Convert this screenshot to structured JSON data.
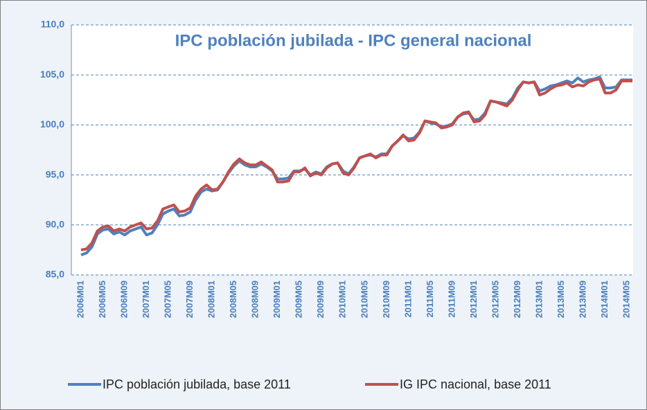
{
  "chart_data": {
    "type": "line",
    "title": "IPC población jubilada - IPC general nacional",
    "categories": [
      "2006M01",
      null,
      null,
      null,
      "2006M05",
      null,
      null,
      null,
      "2006M09",
      null,
      null,
      null,
      "2007M01",
      null,
      null,
      null,
      "2007M05",
      null,
      null,
      null,
      "2007M09",
      null,
      null,
      null,
      "2008M01",
      null,
      null,
      null,
      "2008M05",
      null,
      null,
      null,
      "2008M09",
      null,
      null,
      null,
      "2009M01",
      null,
      null,
      null,
      "2009M05",
      null,
      null,
      null,
      "2009M09",
      null,
      null,
      null,
      "2010M01",
      null,
      null,
      null,
      "2010M05",
      null,
      null,
      null,
      "2010M09",
      null,
      null,
      null,
      "2011M01",
      null,
      null,
      null,
      "2011M05",
      null,
      null,
      null,
      "2011M09",
      null,
      null,
      null,
      "2012M01",
      null,
      null,
      null,
      "2012M05",
      null,
      null,
      null,
      "2012M09",
      null,
      null,
      null,
      "2013M01",
      null,
      null,
      null,
      "2013M05",
      null,
      null,
      null,
      "2013M09",
      null,
      null,
      null,
      "2014M01",
      null,
      null,
      null,
      "2014M05",
      null
    ],
    "series": [
      {
        "name": "IPC población jubilada, base 2011",
        "color": "#4f81bd",
        "values": [
          87.0,
          87.2,
          87.8,
          89.1,
          89.5,
          89.6,
          89.1,
          89.3,
          89.0,
          89.4,
          89.6,
          89.8,
          89.0,
          89.2,
          90.0,
          91.1,
          91.4,
          91.6,
          90.9,
          91.0,
          91.3,
          92.5,
          93.3,
          93.6,
          93.4,
          93.5,
          94.3,
          95.2,
          95.9,
          96.4,
          96.0,
          95.8,
          95.8,
          96.1,
          95.8,
          95.4,
          94.6,
          94.6,
          94.7,
          95.4,
          95.4,
          95.6,
          95.0,
          95.3,
          95.1,
          95.8,
          96.1,
          96.2,
          95.4,
          95.1,
          95.8,
          96.7,
          96.9,
          97.0,
          96.8,
          97.1,
          97.1,
          97.9,
          98.4,
          98.9,
          98.6,
          98.7,
          99.3,
          100.4,
          100.2,
          100.1,
          99.8,
          99.9,
          100.1,
          100.8,
          101.1,
          101.2,
          100.5,
          100.6,
          101.2,
          102.4,
          102.3,
          102.2,
          102.1,
          102.7,
          103.7,
          104.3,
          104.2,
          104.3,
          103.4,
          103.6,
          103.9,
          104.0,
          104.2,
          104.4,
          104.2,
          104.7,
          104.3,
          104.5,
          104.6,
          104.8,
          103.7,
          103.7,
          103.8,
          104.5,
          104.5,
          104.5
        ]
      },
      {
        "name": "IG IPC nacional, base 2011",
        "color": "#c0504d",
        "values": [
          87.5,
          87.6,
          88.2,
          89.4,
          89.8,
          89.9,
          89.4,
          89.6,
          89.4,
          89.8,
          90.0,
          90.2,
          89.6,
          89.7,
          90.4,
          91.6,
          91.8,
          92.0,
          91.3,
          91.4,
          91.7,
          92.9,
          93.6,
          94.0,
          93.5,
          93.6,
          94.3,
          95.3,
          96.1,
          96.6,
          96.2,
          96.0,
          96.0,
          96.3,
          95.9,
          95.5,
          94.3,
          94.3,
          94.4,
          95.3,
          95.3,
          95.7,
          94.9,
          95.2,
          95.0,
          95.7,
          96.1,
          96.2,
          95.2,
          95.0,
          95.7,
          96.7,
          96.9,
          97.1,
          96.7,
          97.0,
          97.0,
          97.9,
          98.4,
          99.0,
          98.4,
          98.5,
          99.2,
          100.4,
          100.3,
          100.2,
          99.7,
          99.8,
          100.0,
          100.8,
          101.2,
          101.3,
          100.3,
          100.4,
          101.0,
          102.4,
          102.3,
          102.1,
          101.9,
          102.5,
          103.5,
          104.3,
          104.2,
          104.3,
          103.0,
          103.2,
          103.6,
          103.9,
          104.0,
          104.2,
          103.8,
          104.0,
          103.9,
          104.3,
          104.5,
          104.6,
          103.2,
          103.2,
          103.5,
          104.4,
          104.4,
          104.4
        ]
      }
    ],
    "ylim": [
      85,
      110
    ],
    "yticks": [
      {
        "value": 85,
        "label": "85,0"
      },
      {
        "value": 90,
        "label": "90,0"
      },
      {
        "value": 95,
        "label": "95,0"
      },
      {
        "value": 100,
        "label": "100,0"
      },
      {
        "value": 105,
        "label": "105,0"
      },
      {
        "value": 110,
        "label": "110,0"
      }
    ],
    "grid": true,
    "legend": "bottom"
  }
}
